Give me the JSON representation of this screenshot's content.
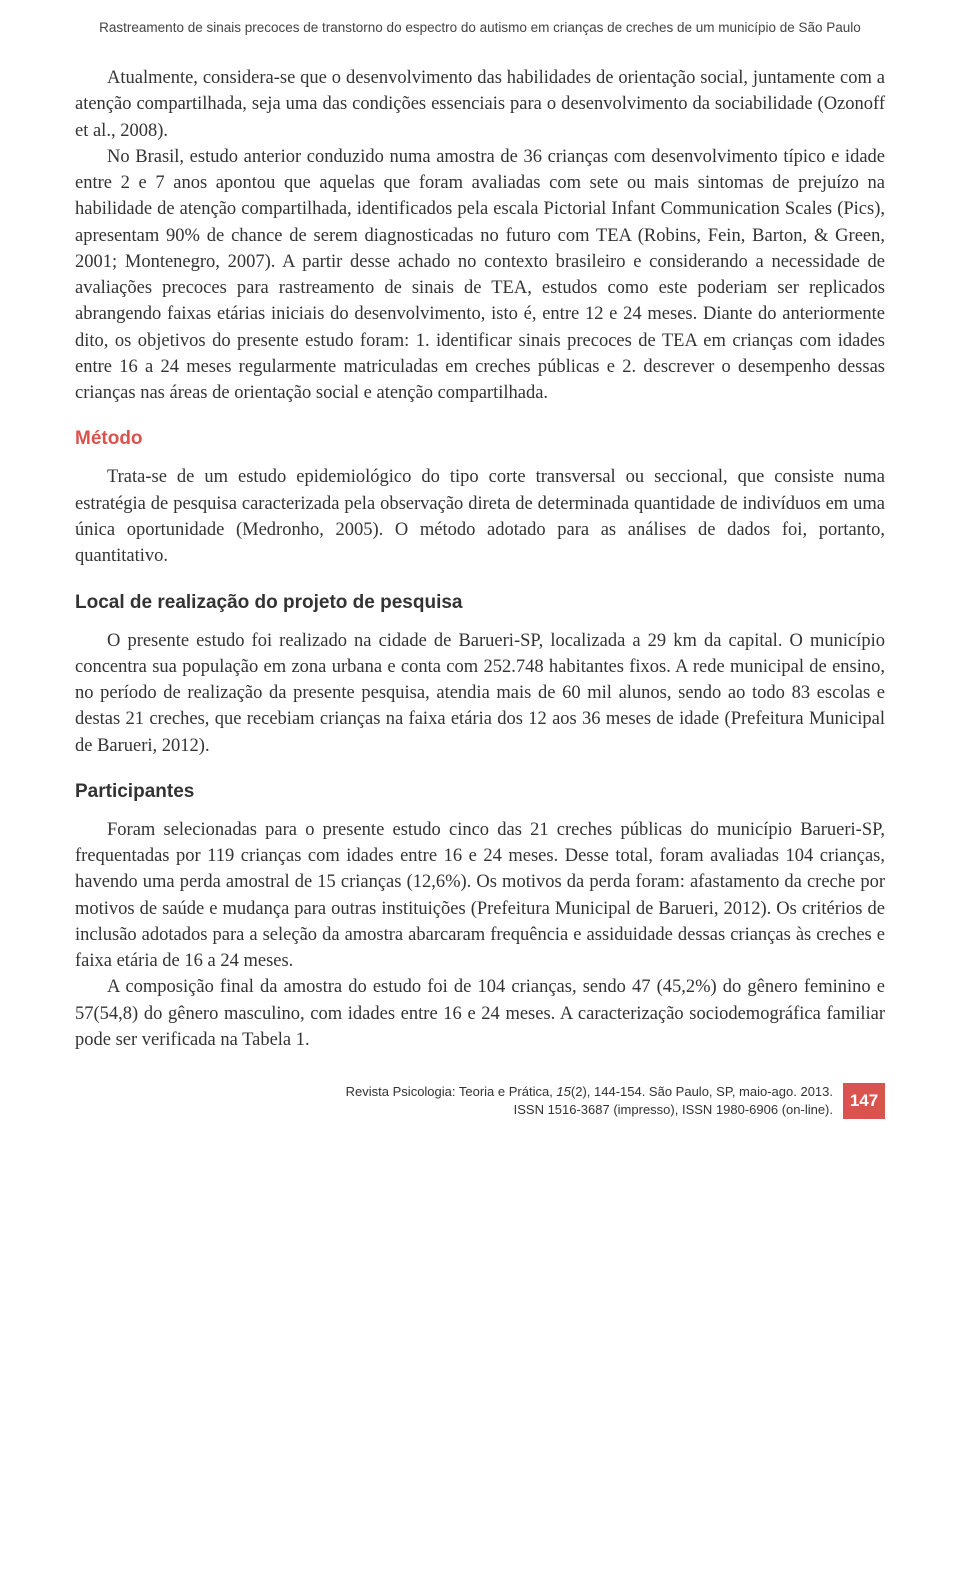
{
  "colors": {
    "accent_red": "#d9534f",
    "text_main": "#333333",
    "background": "#ffffff",
    "header_text": "#444444"
  },
  "running_header": "Rastreamento de sinais precoces de transtorno do espectro do autismo em crianças de creches de um município de São Paulo",
  "paragraphs": {
    "p1": "Atualmente, considera-se que o desenvolvimento das habilidades de orientação social, juntamente com a atenção compartilhada, seja uma das condições essenciais para o desenvolvimento da sociabilidade (Ozonoff et al., 2008).",
    "p2": "No Brasil, estudo anterior conduzido numa amostra de 36 crianças com desenvolvimento típico e idade entre 2 e 7 anos apontou que aquelas que foram avaliadas com sete ou mais sintomas de prejuízo na habilidade de atenção compartilhada, identificados pela escala Pictorial Infant Communication Scales (Pics), apresentam 90% de chance de serem diagnosticadas no futuro com TEA (Robins, Fein, Barton, & Green, 2001; Montenegro, 2007). A partir desse achado no contexto brasileiro e considerando a necessidade de avaliações precoces para rastreamento de sinais de TEA, estudos como este poderiam ser replicados abrangendo faixas etárias iniciais do desenvolvimento, isto é, entre 12 e 24 meses. Diante do anteriormente dito, os objetivos do presente estudo foram: 1. identificar sinais precoces de TEA em crianças com idades entre 16 a 24 meses regularmente matriculadas em creches públicas e 2. descrever o desempenho dessas crianças nas áreas de orientação social e atenção compartilhada.",
    "metodo": "Trata-se de um estudo epidemiológico do tipo corte transversal ou seccional, que consiste numa estratégia de pesquisa caracterizada pela observação direta de determinada quantidade de indivíduos em uma única oportunidade (Medronho, 2005). O método adotado para as análises de dados foi, portanto, quantitativo.",
    "local": "O presente estudo foi realizado na cidade de Barueri-SP, localizada a 29 km da capital. O município concentra sua população em zona urbana e conta com 252.748 habitantes fixos. A rede municipal de ensino, no período de realização da presente pesquisa, atendia mais de 60 mil alunos, sendo ao todo 83 escolas e destas 21 creches, que recebiam crianças na faixa etária dos 12 aos 36 meses de idade (Prefeitura Municipal de Barueri, 2012).",
    "participantes1": "Foram selecionadas para o presente estudo cinco das 21 creches públicas do município Barueri-SP, frequentadas por 119 crianças com idades entre 16 e 24 meses. Desse total, foram avaliadas 104 crianças, havendo uma perda amostral de 15 crianças (12,6%). Os motivos da perda foram: afastamento da creche por motivos de saúde e mudança para outras instituições (Prefeitura Municipal de Barueri, 2012). Os critérios de inclusão adotados para a seleção da amostra abarcaram frequência e assiduidade dessas crianças às creches e faixa etária de 16 a 24 meses.",
    "participantes2": "A composição final da amostra do estudo foi de 104 crianças, sendo 47 (45,2%) do gênero feminino e 57(54,8) do gênero masculino, com idades entre 16 e 24 meses. A caracterização sociodemográfica familiar pode ser verificada na Tabela 1."
  },
  "headings": {
    "metodo": "Método",
    "local": "Local de realização do projeto de pesquisa",
    "participantes": "Participantes"
  },
  "footer": {
    "line1_prefix": "Revista Psicologia: Teoria e Prática, ",
    "line1_volume": "15",
    "line1_rest": "(2), 144-154. São Paulo, SP, maio-ago. 2013.",
    "line2": "ISSN 1516-3687 (impresso), ISSN 1980-6906 (on-line).",
    "page_number": "147"
  }
}
